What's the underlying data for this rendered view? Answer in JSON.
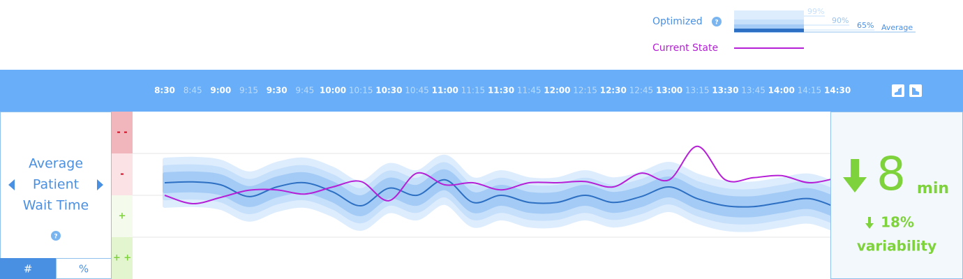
{
  "legend": {
    "help": "?"
  },
  "chart_data": {
    "type": "line",
    "x": [
      "8:30",
      "8:45",
      "9:00",
      "9:15",
      "9:30",
      "9:45",
      "10:00",
      "10:15",
      "10:30",
      "10:45",
      "11:00",
      "11:15",
      "11:30",
      "11:45",
      "12:00",
      "12:15",
      "12:30",
      "12:45",
      "13:00",
      "13:15",
      "13:30",
      "13:45",
      "14:00",
      "14:15",
      "14:30"
    ],
    "ylim": [
      0,
      4
    ],
    "average_label": "Average",
    "bands": [
      {
        "label": "99%",
        "halfwidth": 0.55,
        "color": "#deedfd"
      },
      {
        "label": "90%",
        "halfwidth": 0.37,
        "color": "#c6dffb"
      },
      {
        "label": "65%",
        "halfwidth": 0.2,
        "color": "#a3cbf5"
      }
    ],
    "series": [
      {
        "name": "Optimized",
        "color": "#2d6fc2",
        "values": [
          2.3,
          2.32,
          2.25,
          1.97,
          2.2,
          2.3,
          2.08,
          1.75,
          2.17,
          2.0,
          2.37,
          1.83,
          2.0,
          1.83,
          1.83,
          2.0,
          1.83,
          1.97,
          2.2,
          1.92,
          1.75,
          1.73,
          1.83,
          1.92,
          1.7
        ]
      },
      {
        "name": "Current State",
        "color": "#b51fd6",
        "values": [
          2.0,
          1.8,
          1.95,
          2.12,
          2.13,
          2.03,
          2.2,
          2.33,
          1.87,
          2.53,
          2.25,
          2.3,
          2.13,
          2.3,
          2.3,
          2.33,
          2.2,
          2.53,
          2.37,
          3.17,
          2.37,
          2.42,
          2.47,
          2.3,
          2.42
        ]
      }
    ]
  },
  "zones": [
    "- -",
    "-",
    "+",
    "+ +"
  ],
  "metric": {
    "title_lines": [
      "Average",
      "Patient",
      "Wait Time"
    ],
    "help": "?",
    "tabs": [
      "#",
      "%"
    ]
  },
  "summary": {
    "value": 8,
    "unit": "min",
    "change": "18%",
    "change_label": "variability"
  }
}
